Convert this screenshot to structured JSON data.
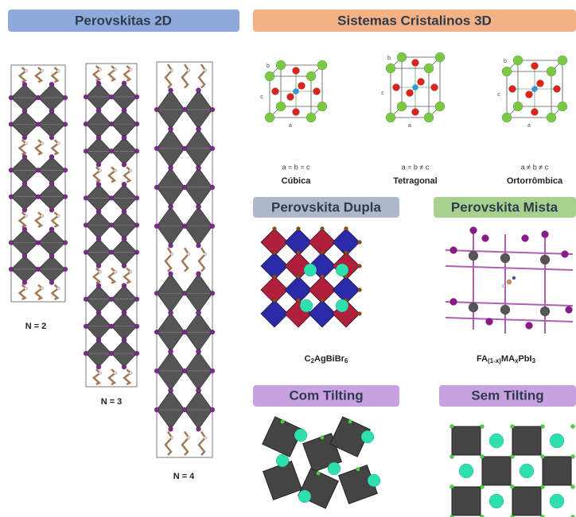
{
  "left": {
    "title": "Perovskitas 2D",
    "columns": [
      {
        "label": "N = 2"
      },
      {
        "label": "N = 3"
      },
      {
        "label": "N = 4"
      }
    ]
  },
  "crystal": {
    "title": "Sistemas Cristalinos 3D",
    "axis_letters": [
      "a",
      "b",
      "c"
    ],
    "systems": [
      {
        "relation": "a = b = c",
        "name": "Cúbica"
      },
      {
        "relation": "a = b ≠ c",
        "name": "Tetragonal"
      },
      {
        "relation": "a ≠ b ≠ c",
        "name": "Ortorrômbica"
      }
    ]
  },
  "double": {
    "title": "Perovskita Dupla",
    "formula_parts": [
      "C",
      "2",
      "AgBiBr",
      "6"
    ]
  },
  "mixed": {
    "title": "Perovskita Mista",
    "formula_parts": [
      "FA",
      "(1-x)",
      "MA",
      "x",
      "PbI",
      "3"
    ]
  },
  "tilt": {
    "title": "Com Tilting"
  },
  "notilt": {
    "title": "Sem Tilting"
  }
}
